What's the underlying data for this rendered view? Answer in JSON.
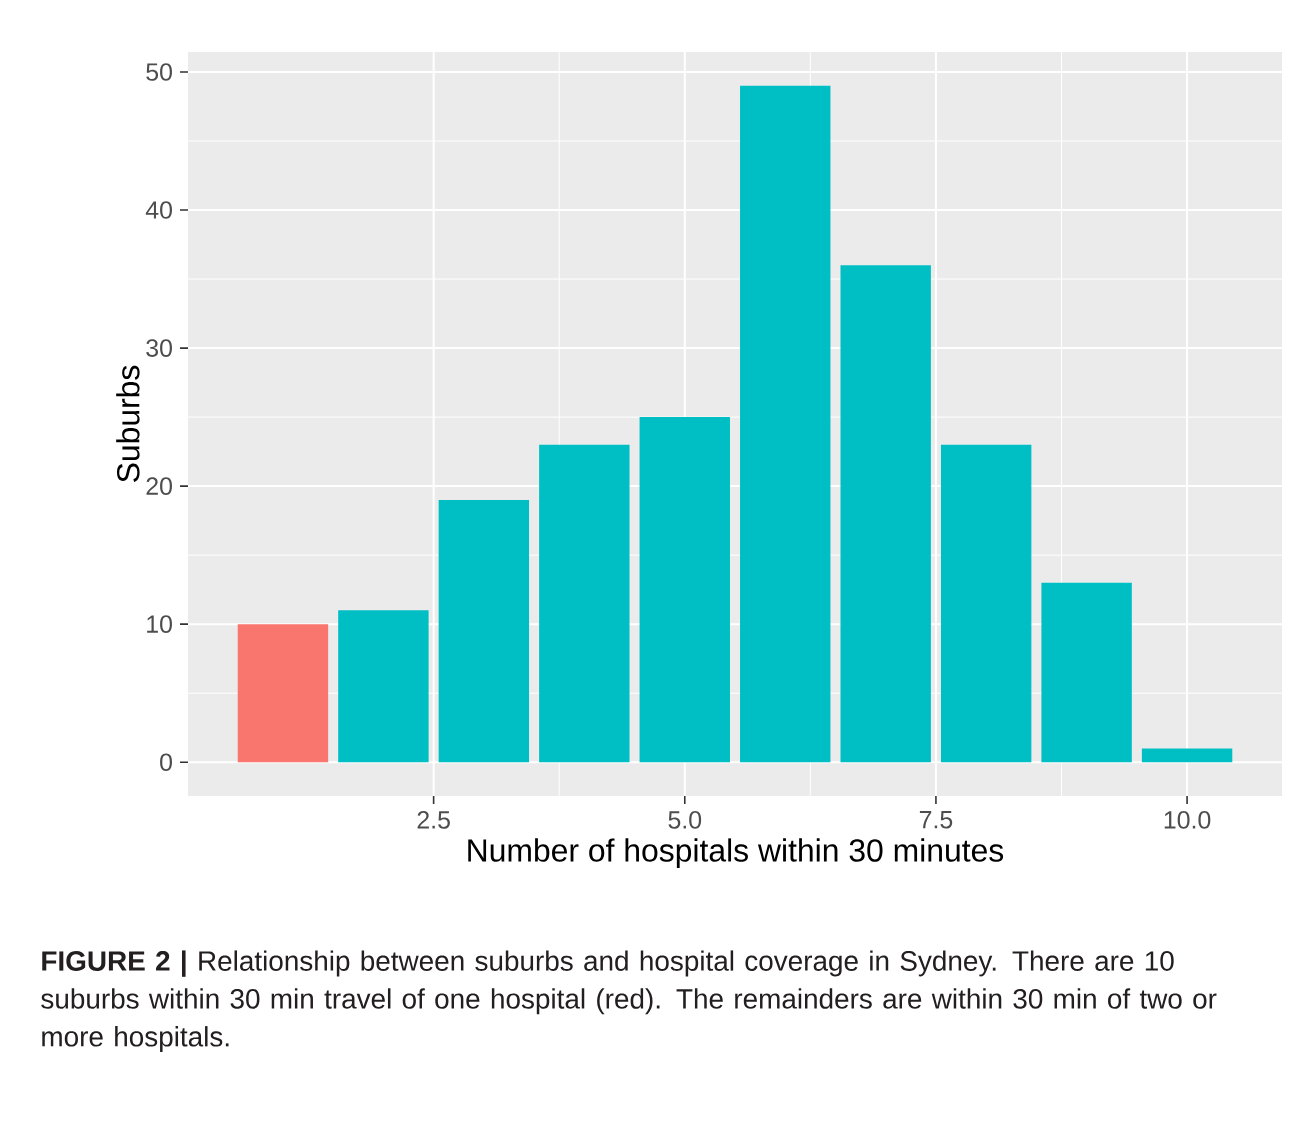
{
  "chart_data": {
    "type": "bar",
    "x": [
      1,
      2,
      3,
      4,
      5,
      6,
      7,
      8,
      9,
      10
    ],
    "values": [
      10,
      11,
      19,
      23,
      25,
      49,
      36,
      23,
      13,
      1
    ],
    "colors": [
      "#f8766d",
      "#00bfc4",
      "#00bfc4",
      "#00bfc4",
      "#00bfc4",
      "#00bfc4",
      "#00bfc4",
      "#00bfc4",
      "#00bfc4",
      "#00bfc4"
    ],
    "xlim": [
      0.055,
      10.945
    ],
    "xticks": [
      {
        "value": 2.5,
        "label": "2.5"
      },
      {
        "value": 5,
        "label": "5.0"
      },
      {
        "value": 7.5,
        "label": "7.5"
      },
      {
        "value": 10,
        "label": "10.0"
      }
    ],
    "ylim": [
      -2.45,
      51.45
    ],
    "yticks": [
      0,
      10,
      20,
      30,
      40,
      50
    ],
    "grid": true,
    "xlabel": "Number of hospitals within 30 minutes",
    "ylabel": "Suburbs",
    "annotations": [
      "**FIGURE 2 |** Relationship between suburbs and hospital coverage in Sydney. There are 10 suburbs within 30 min travel of one hospital (red). The remainders are within 30 min of two or more hospitals."
    ]
  }
}
